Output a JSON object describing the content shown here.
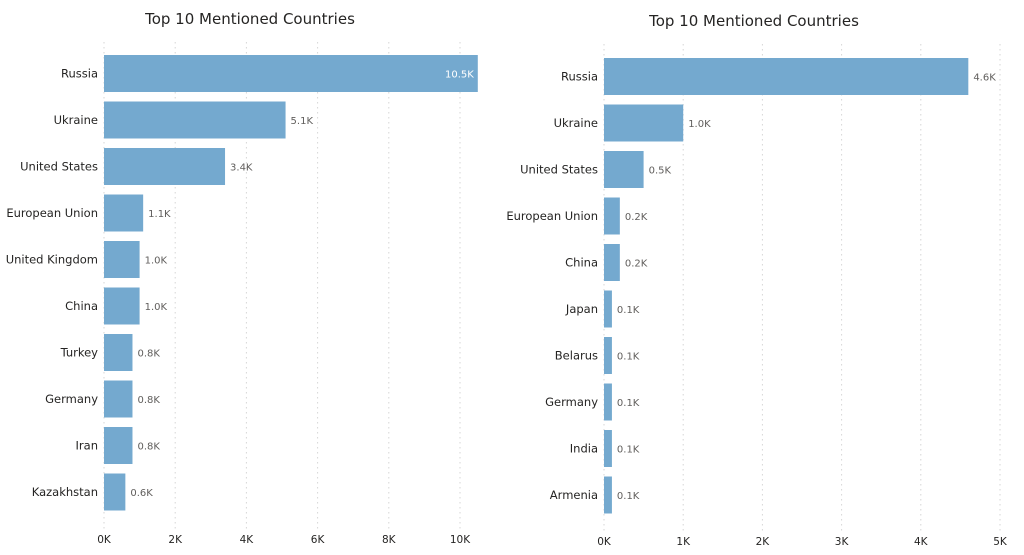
{
  "chart_data": [
    {
      "type": "bar",
      "orientation": "horizontal",
      "title": "Top 10 Mentioned Countries",
      "categories": [
        "Russia",
        "Ukraine",
        "United States",
        "European Union",
        "United Kingdom",
        "China",
        "Turkey",
        "Germany",
        "Iran",
        "Kazakhstan"
      ],
      "values": [
        10500,
        5100,
        3400,
        1100,
        1000,
        1000,
        800,
        800,
        800,
        600
      ],
      "data_labels": [
        "10.5K",
        "5.1K",
        "3.4K",
        "1.1K",
        "1.0K",
        "1.0K",
        "0.8K",
        "0.8K",
        "0.8K",
        "0.6K"
      ],
      "xticks": [
        0,
        2000,
        4000,
        6000,
        8000,
        10000
      ],
      "xtick_labels": [
        "0K",
        "2K",
        "4K",
        "6K",
        "8K",
        "10K"
      ],
      "xlim": [
        0,
        10500
      ],
      "grid": true,
      "bar_color": "#74a9cf"
    },
    {
      "type": "bar",
      "orientation": "horizontal",
      "title": "Top 10 Mentioned Countries",
      "categories": [
        "Russia",
        "Ukraine",
        "United States",
        "European Union",
        "China",
        "Japan",
        "Belarus",
        "Germany",
        "India",
        "Armenia"
      ],
      "values": [
        4600,
        1000,
        500,
        200,
        200,
        100,
        100,
        100,
        100,
        100
      ],
      "data_labels": [
        "4.6K",
        "1.0K",
        "0.5K",
        "0.2K",
        "0.2K",
        "0.1K",
        "0.1K",
        "0.1K",
        "0.1K",
        "0.1K"
      ],
      "xticks": [
        0,
        1000,
        2000,
        3000,
        4000,
        5000
      ],
      "xtick_labels": [
        "0K",
        "1K",
        "2K",
        "3K",
        "4K",
        "5K"
      ],
      "xlim": [
        0,
        5000
      ],
      "grid": true,
      "bar_color": "#74a9cf"
    }
  ]
}
